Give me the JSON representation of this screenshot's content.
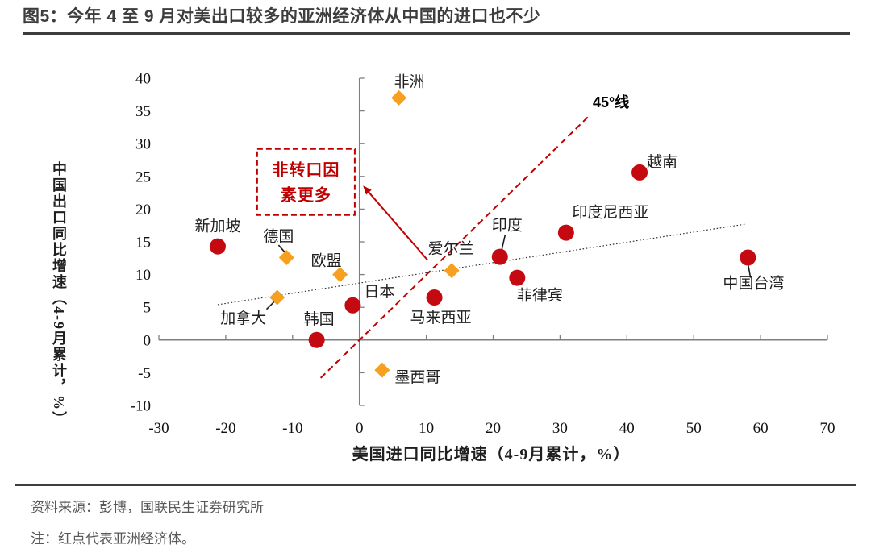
{
  "title": "图5：今年 4 至 9 月对美出口较多的亚洲经济体从中国的进口也不少",
  "source": "资料来源：彭博，国联民生证券研究所",
  "note": "注：红点代表亚洲经济体。",
  "colors": {
    "asia_point": "#c40a10",
    "other_point": "#f5a01f",
    "annotation_red": "#c00000",
    "axis_gray": "#7f7f7f",
    "label_text": "#1f1f1f",
    "title_text": "#3d3d3d",
    "footer_text": "#595959"
  },
  "chart_data": {
    "type": "scatter",
    "xlabel": "美国进口同比增速（4-9月累计，%）",
    "ylabel": "中国出口同比增速（4-9月累计，%）",
    "xlim": [
      -30,
      70
    ],
    "ylim": [
      -10,
      40
    ],
    "x_ticks": [
      -30,
      -20,
      -10,
      0,
      10,
      20,
      30,
      40,
      50,
      60,
      70
    ],
    "y_ticks": [
      40,
      35,
      30,
      25,
      20,
      15,
      10,
      5,
      0,
      -5,
      -10
    ],
    "grid": false,
    "legend": "none",
    "series": [
      {
        "name": "亚洲经济体（红点）",
        "marker": "circle",
        "color": "#c40a10",
        "points": [
          {
            "label": "新加坡",
            "x": -21.2,
            "y": 14.3,
            "label_offset": [
              0,
              -26
            ]
          },
          {
            "label": "韩国",
            "x": -6.4,
            "y": 0.0,
            "label_offset": [
              3,
              -27
            ]
          },
          {
            "label": "日本",
            "x": -1.0,
            "y": 5.3,
            "label_offset": [
              33,
              -18
            ]
          },
          {
            "label": "马来西亚",
            "x": 11.2,
            "y": 6.5,
            "label_offset": [
              8,
              24
            ]
          },
          {
            "label": "印度",
            "x": 21.0,
            "y": 12.7,
            "label_offset": [
              9,
              -40
            ],
            "connector": [
              [
                21.8,
                16.1
              ],
              [
                21.2,
                13.4
              ]
            ]
          },
          {
            "label": "菲律宾",
            "x": 23.6,
            "y": 9.5,
            "label_offset": [
              28,
              21
            ]
          },
          {
            "label": "印度尼西亚",
            "x": 30.9,
            "y": 16.4,
            "label_offset": [
              55,
              -26
            ]
          },
          {
            "label": "越南",
            "x": 41.9,
            "y": 25.6,
            "label_offset": [
              28,
              -14
            ]
          },
          {
            "label": "中国台湾",
            "x": 58.1,
            "y": 12.6,
            "label_offset": [
              7,
              31
            ],
            "connector": [
              [
                58.1,
                11.7
              ],
              [
                58.5,
                9.5
              ]
            ]
          }
        ]
      },
      {
        "name": "其他经济体（橙色菱形）",
        "marker": "diamond",
        "color": "#f5a01f",
        "points": [
          {
            "label": "非洲",
            "x": 5.9,
            "y": 37.0,
            "label_offset": [
              13,
              -21
            ]
          },
          {
            "label": "德国",
            "x": -10.9,
            "y": 12.6,
            "label_offset": [
              -10,
              -27
            ],
            "connector": [
              [
                -12.1,
                14.5
              ],
              [
                -10.9,
                13.1
              ]
            ]
          },
          {
            "label": "欧盟",
            "x": -2.9,
            "y": 10.0,
            "label_offset": [
              -17,
              -18
            ]
          },
          {
            "label": "加拿大",
            "x": -12.3,
            "y": 6.5,
            "label_offset": [
              -42,
              25
            ],
            "connector": [
              [
                -13.9,
                4.7
              ],
              [
                -12.4,
                6.2
              ]
            ]
          },
          {
            "label": "爱尔兰",
            "x": 13.8,
            "y": 10.6,
            "label_offset": [
              -1,
              -28
            ]
          },
          {
            "label": "墨西哥",
            "x": 3.4,
            "y": -4.6,
            "label_offset": [
              44,
              8
            ]
          }
        ]
      }
    ],
    "reference_lines": [
      {
        "name": "45度线",
        "label": "45°线",
        "from": [
          -5.8,
          -5.8
        ],
        "to": [
          34.3,
          34.2
        ],
        "style": "dashed",
        "color": "#c00000",
        "width": 2,
        "label_pos": [
          34.9,
          36.3
        ]
      },
      {
        "name": "趋势线",
        "label": "",
        "from": [
          -21.2,
          5.4
        ],
        "to": [
          57.7,
          17.7
        ],
        "style": "dotted",
        "color": "#333333",
        "width": 1.2
      }
    ],
    "annotation": {
      "text_lines": [
        "非转口因",
        "素更多"
      ],
      "box": {
        "x1": -15.3,
        "y1": 29.2,
        "x2": -0.7,
        "y2": 19.1
      },
      "arrow": {
        "from": [
          10.2,
          12.2
        ],
        "to": [
          0.7,
          23.4
        ]
      },
      "color": "#c00000"
    }
  }
}
